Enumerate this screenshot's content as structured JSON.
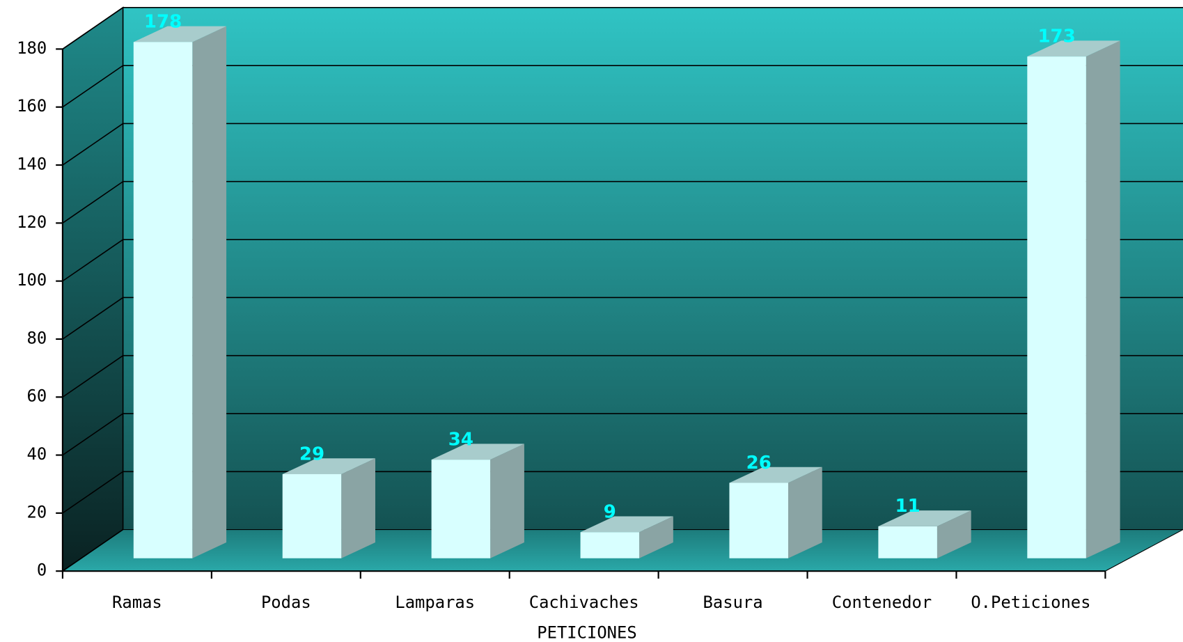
{
  "chart_data": {
    "type": "bar3d",
    "x_label": "PETICIONES",
    "categories": [
      "Ramas",
      "Podas",
      "Lamparas",
      "Cachivaches",
      "Basura",
      "Contenedor",
      "O.Peticiones"
    ],
    "values": [
      178,
      29,
      34,
      9,
      26,
      11,
      173
    ],
    "color": "#d8ffff",
    "label_color": "#00ffff",
    "ylim": [
      0,
      180
    ],
    "yticks": [
      0,
      20,
      40,
      60,
      80,
      100,
      120,
      140,
      160,
      180
    ],
    "grid": true
  }
}
